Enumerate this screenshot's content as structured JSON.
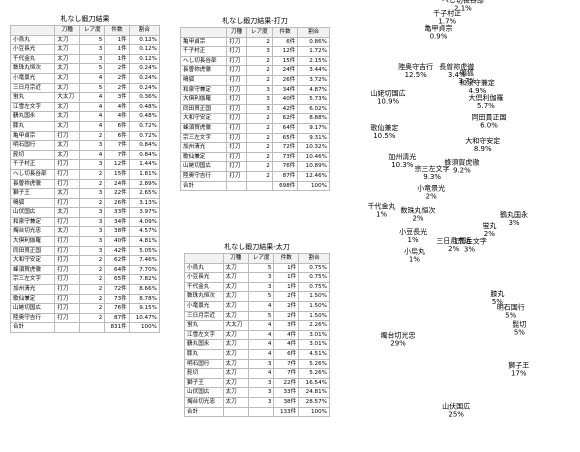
{
  "tables": [
    {
      "title": "札なし鍛刀結果",
      "columns": [
        "刀種",
        "レア度",
        "件数",
        "割合"
      ],
      "rows": [
        [
          "小烏丸",
          "太刀",
          "5",
          "1件",
          "0.12%"
        ],
        [
          "小豆長光",
          "太刀",
          "3",
          "1件",
          "0.12%"
        ],
        [
          "千代金丸",
          "太刀",
          "3",
          "1件",
          "0.12%"
        ],
        [
          "数珠丸恒次",
          "太刀",
          "5",
          "2件",
          "0.24%"
        ],
        [
          "小竜景光",
          "太刀",
          "4",
          "2件",
          "0.24%"
        ],
        [
          "三日月宗近",
          "太刀",
          "5",
          "2件",
          "0.24%"
        ],
        [
          "蛍丸",
          "大太刀",
          "4",
          "3件",
          "0.36%"
        ],
        [
          "江雪左文字",
          "太刀",
          "4",
          "4件",
          "0.48%"
        ],
        [
          "鶴丸国永",
          "太刀",
          "4",
          "4件",
          "0.48%"
        ],
        [
          "膝丸",
          "太刀",
          "4",
          "6件",
          "0.72%"
        ],
        [
          "亀甲貞宗",
          "打刀",
          "2",
          "6件",
          "0.72%"
        ],
        [
          "明石国行",
          "太刀",
          "3",
          "7件",
          "0.84%"
        ],
        [
          "髭切",
          "太刀",
          "4",
          "7件",
          "0.84%"
        ],
        [
          "千子村正",
          "打刀",
          "3",
          "12件",
          "1.44%"
        ],
        [
          "へし切長谷部",
          "打刀",
          "2",
          "15件",
          "1.81%"
        ],
        [
          "長曽祢虎徹",
          "打刀",
          "2",
          "24件",
          "2.89%"
        ],
        [
          "獅子王",
          "太刀",
          "3",
          "22件",
          "2.65%"
        ],
        [
          "鳴狐",
          "打刀",
          "2",
          "26件",
          "3.13%"
        ],
        [
          "山伏国広",
          "太刀",
          "3",
          "33件",
          "3.97%"
        ],
        [
          "和泉守兼定",
          "打刀",
          "3",
          "34件",
          "4.09%"
        ],
        [
          "燭台切光忠",
          "太刀",
          "3",
          "38件",
          "4.57%"
        ],
        [
          "大倶利伽羅",
          "打刀",
          "3",
          "40件",
          "4.81%"
        ],
        [
          "同田貫正国",
          "打刀",
          "3",
          "42件",
          "5.05%"
        ],
        [
          "大和守安定",
          "打刀",
          "2",
          "62件",
          "7.46%"
        ],
        [
          "蜂須賀虎徹",
          "打刀",
          "2",
          "64件",
          "7.70%"
        ],
        [
          "宗三左文字",
          "打刀",
          "2",
          "65件",
          "7.82%"
        ],
        [
          "加州清光",
          "打刀",
          "2",
          "72件",
          "8.66%"
        ],
        [
          "歌仙兼定",
          "打刀",
          "2",
          "73件",
          "8.78%"
        ],
        [
          "山姥切国広",
          "打刀",
          "2",
          "76件",
          "9.15%"
        ],
        [
          "陸奥守吉行",
          "打刀",
          "2",
          "87件",
          "10.47%"
        ]
      ],
      "total": [
        "合計",
        "831件",
        "100%"
      ]
    },
    {
      "title": "札なし鍛刀結果-打刀",
      "columns": [
        "刀種",
        "レア度",
        "件数",
        "割合"
      ],
      "rows": [
        [
          "亀甲貞宗",
          "打刀",
          "2",
          "6件",
          "0.86%"
        ],
        [
          "千子村正",
          "打刀",
          "3",
          "12件",
          "1.72%"
        ],
        [
          "へし切長谷部",
          "打刀",
          "2",
          "15件",
          "2.15%"
        ],
        [
          "長曽祢虎徹",
          "打刀",
          "2",
          "24件",
          "3.44%"
        ],
        [
          "鳴狐",
          "打刀",
          "2",
          "26件",
          "3.72%"
        ],
        [
          "和泉守兼定",
          "打刀",
          "3",
          "34件",
          "4.87%"
        ],
        [
          "大倶利伽羅",
          "打刀",
          "3",
          "40件",
          "5.73%"
        ],
        [
          "同田貫正国",
          "打刀",
          "3",
          "42件",
          "6.02%"
        ],
        [
          "大和守安定",
          "打刀",
          "2",
          "62件",
          "8.88%"
        ],
        [
          "蜂須賀虎徹",
          "打刀",
          "2",
          "64件",
          "9.17%"
        ],
        [
          "宗三左文字",
          "打刀",
          "2",
          "65件",
          "9.31%"
        ],
        [
          "加州清光",
          "打刀",
          "2",
          "72件",
          "10.32%"
        ],
        [
          "歌仙兼定",
          "打刀",
          "2",
          "73件",
          "10.46%"
        ],
        [
          "山姥切国広",
          "打刀",
          "2",
          "76件",
          "10.89%"
        ],
        [
          "陸奥守吉行",
          "打刀",
          "2",
          "87件",
          "12.46%"
        ]
      ],
      "total": [
        "合計",
        "698件",
        "100%"
      ]
    },
    {
      "title": "札なし鍛刀結果-太刀",
      "columns": [
        "刀種",
        "レア度",
        "件数",
        "割合"
      ],
      "rows": [
        [
          "小烏丸",
          "太刀",
          "5",
          "1件",
          "0.75%"
        ],
        [
          "小豆長光",
          "太刀",
          "3",
          "1件",
          "0.75%"
        ],
        [
          "千代金丸",
          "太刀",
          "3",
          "1件",
          "0.75%"
        ],
        [
          "数珠丸恒次",
          "太刀",
          "5",
          "2件",
          "1.50%"
        ],
        [
          "小竜景光",
          "太刀",
          "4",
          "2件",
          "1.50%"
        ],
        [
          "三日月宗近",
          "太刀",
          "5",
          "2件",
          "1.50%"
        ],
        [
          "蛍丸",
          "大太刀",
          "4",
          "3件",
          "2.26%"
        ],
        [
          "江雪左文字",
          "太刀",
          "4",
          "4件",
          "3.01%"
        ],
        [
          "鶴丸国永",
          "太刀",
          "4",
          "4件",
          "3.01%"
        ],
        [
          "膝丸",
          "太刀",
          "4",
          "6件",
          "4.51%"
        ],
        [
          "明石国行",
          "太刀",
          "3",
          "7件",
          "5.26%"
        ],
        [
          "髭切",
          "太刀",
          "4",
          "7件",
          "5.26%"
        ],
        [
          "獅子王",
          "太刀",
          "3",
          "22件",
          "16.54%"
        ],
        [
          "山伏国広",
          "太刀",
          "3",
          "33件",
          "24.81%"
        ],
        [
          "燭台切光忠",
          "太刀",
          "3",
          "38件",
          "28.57%"
        ]
      ],
      "total": [
        "合計",
        "133件",
        "100%"
      ]
    }
  ],
  "chart_data": [
    {
      "type": "pie",
      "categories": [
        "亀甲貞宗",
        "千子村正",
        "へし切長谷部",
        "長曽祢虎徹",
        "鳴狐",
        "和泉守兼定",
        "大倶利伽羅",
        "同田貫正国",
        "大和守安定",
        "蜂須賀虎徹",
        "宗三左文字",
        "加州清光",
        "歌仙兼定",
        "山姥切国広",
        "陸奥守吉行"
      ],
      "values": [
        0.9,
        1.7,
        2.1,
        3.4,
        3.7,
        4.9,
        5.7,
        6.0,
        8.9,
        9.2,
        9.3,
        10.3,
        10.5,
        10.9,
        12.5
      ],
      "value_labels": [
        "0.9%",
        "1.7%",
        "2.1%",
        "3.4%",
        "3.7%",
        "4.9%",
        "5.7%",
        "6.0%",
        "8.9%",
        "9.2%",
        "9.3%",
        "10.3%",
        "10.5%",
        "10.9%",
        "12.5%"
      ],
      "colors": [
        "#3d6fb6",
        "#6fb7e6",
        "#a6d4f2",
        "#f06a2a",
        "#e8413c",
        "#7bbf4a",
        "#35b8d8",
        "#8fd15a",
        "#f59b2d",
        "#9a9a9a",
        "#8a4fb0",
        "#6b6b6b",
        "#3f8fd2",
        "#9ccc3a",
        "#f7d33a"
      ]
    },
    {
      "type": "pie",
      "categories": [
        "江雪左文字",
        "蛍丸",
        "鶴丸国永",
        "膝丸",
        "明石国行",
        "髭切",
        "獅子王",
        "山伏国広",
        "燭台切光忠",
        "千代金丸",
        "小烏丸",
        "小豆長光",
        "数珠丸恒次",
        "小竜景光",
        "三日月宗近"
      ],
      "values": [
        3,
        2,
        3,
        5,
        5,
        5,
        17,
        25,
        29,
        1,
        1,
        1,
        2,
        2,
        2
      ],
      "value_labels": [
        "3%",
        "2%",
        "3%",
        "5%",
        "5%",
        "5%",
        "17%",
        "25%",
        "29%",
        "1%",
        "1%",
        "1%",
        "2%",
        "2%",
        "2%"
      ],
      "colors": [
        "#3f8fd2",
        "#35b8d8",
        "#6fbe44",
        "#d83a8f",
        "#8a4fb0",
        "#6b6b6b",
        "#3f7fd0",
        "#6dbf4a",
        "#f7cf3a",
        "#a6d4f2",
        "#5aa0d8",
        "#3d6fb6",
        "#e8413c",
        "#f06a2a",
        "#9a9a9a"
      ]
    }
  ]
}
